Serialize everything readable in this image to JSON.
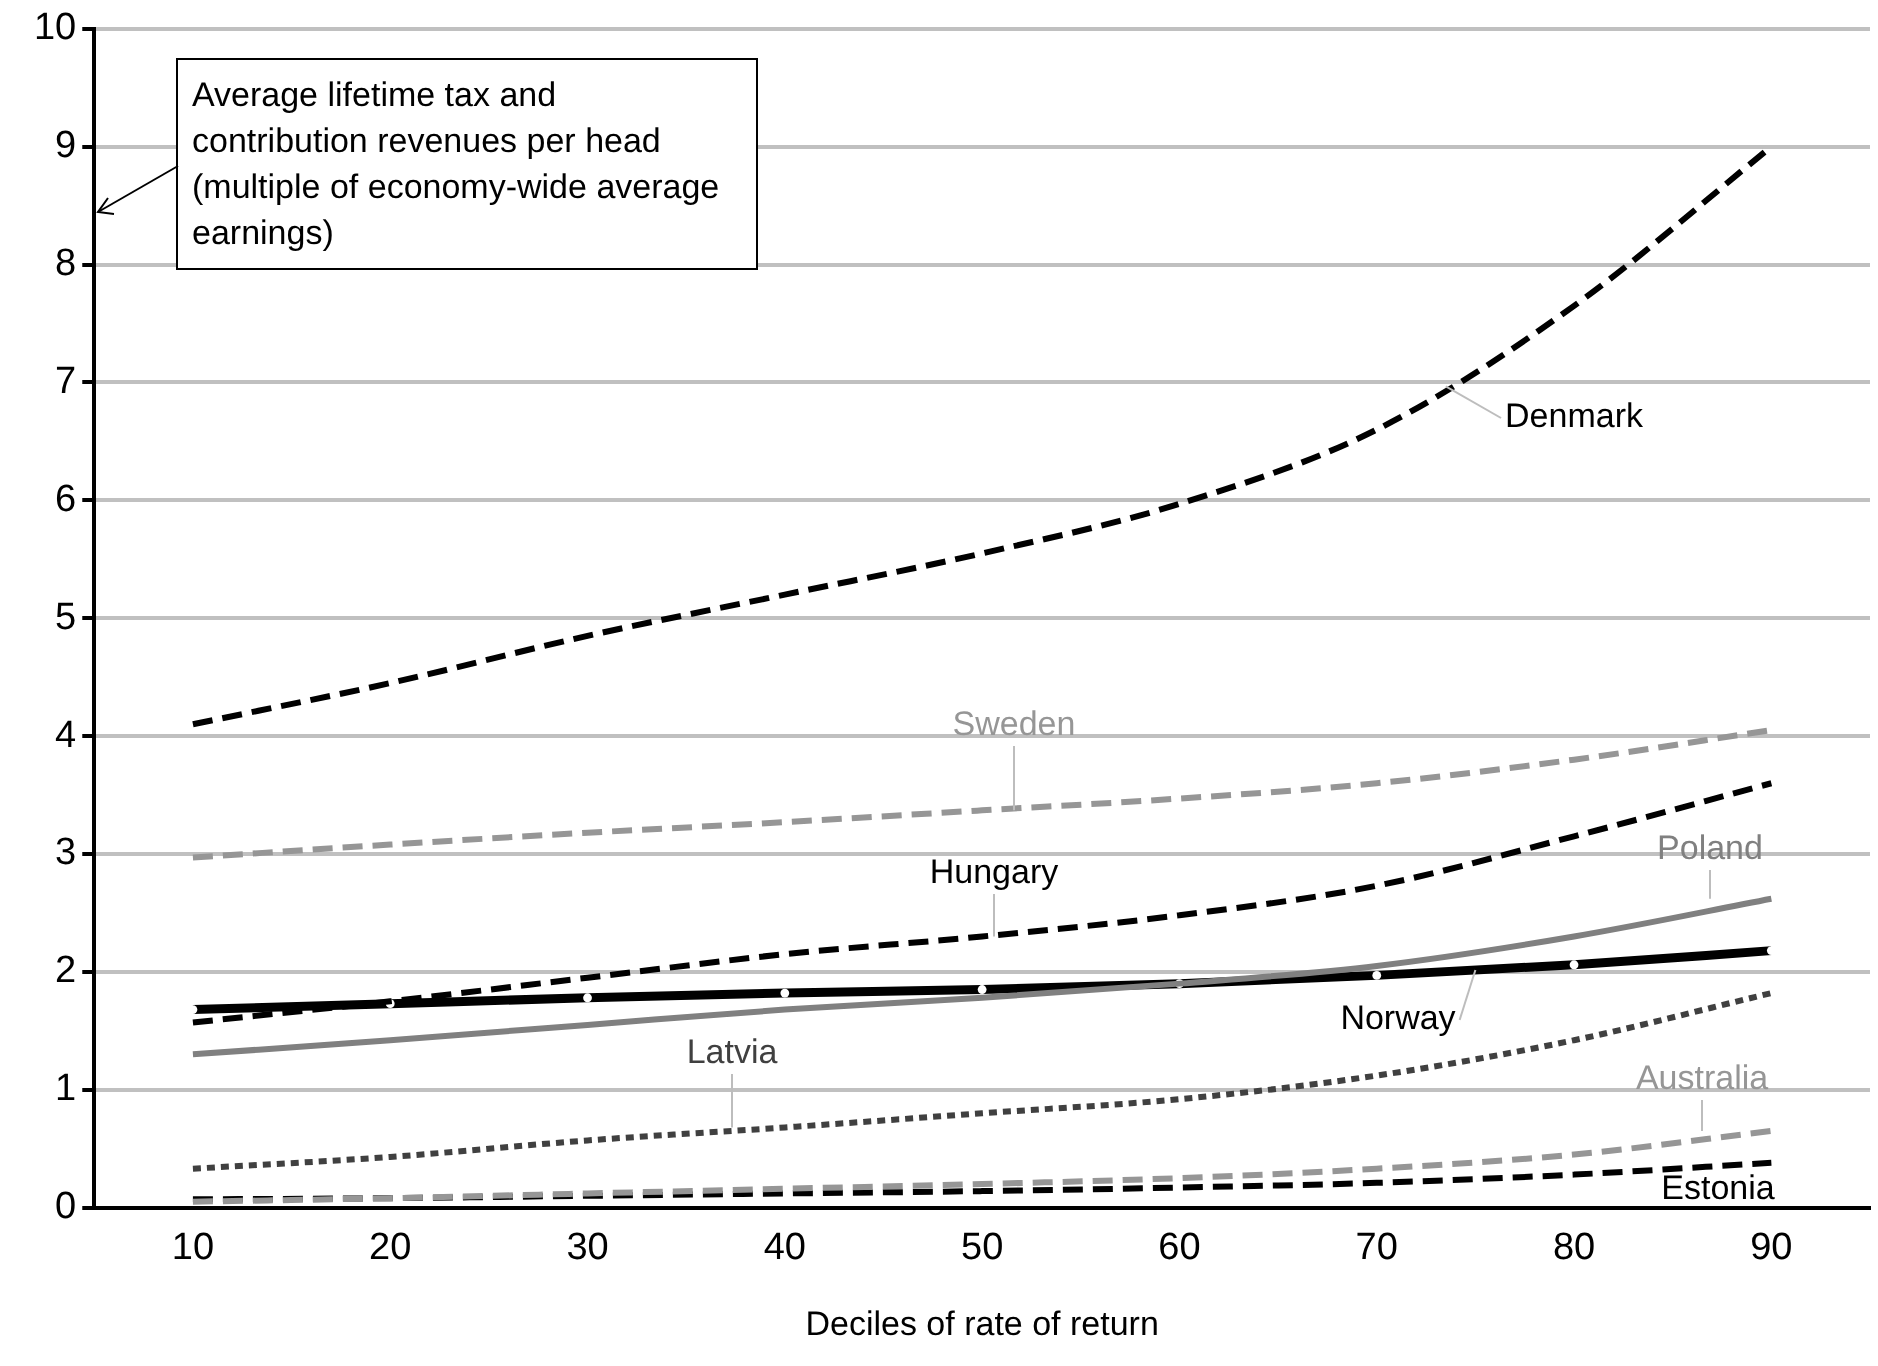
{
  "chart_data": {
    "type": "line",
    "ylabel": "Average lifetime tax and contribution revenues per head (multiple of economy-wide average earnings)",
    "xlabel": "Deciles of rate of return",
    "categories": [
      "10",
      "20",
      "30",
      "40",
      "50",
      "60",
      "70",
      "80",
      "90"
    ],
    "series": [
      {
        "name": "Denmark",
        "color": "#000000",
        "line_style": "dashed",
        "values": [
          4.1,
          4.45,
          4.85,
          5.2,
          5.55,
          5.97,
          6.6,
          7.65,
          9.0
        ]
      },
      {
        "name": "Sweden",
        "color": "#969696",
        "line_style": "dashed",
        "values": [
          2.97,
          3.08,
          3.18,
          3.27,
          3.37,
          3.47,
          3.6,
          3.8,
          4.05
        ]
      },
      {
        "name": "Hungary",
        "color": "#000000",
        "line_style": "dashed",
        "values": [
          1.57,
          1.75,
          1.95,
          2.15,
          2.3,
          2.48,
          2.73,
          3.15,
          3.6
        ]
      },
      {
        "name": "Poland",
        "color": "#808080",
        "line_style": "solid",
        "values": [
          1.3,
          1.42,
          1.55,
          1.68,
          1.78,
          1.9,
          2.05,
          2.3,
          2.62
        ]
      },
      {
        "name": "Norway",
        "color": "#000000",
        "line_style": "solid",
        "marker": "circle",
        "values": [
          1.68,
          1.73,
          1.78,
          1.82,
          1.85,
          1.9,
          1.97,
          2.06,
          2.18
        ]
      },
      {
        "name": "Latvia",
        "color": "#404040",
        "line_style": "dotted",
        "values": [
          0.33,
          0.43,
          0.57,
          0.68,
          0.8,
          0.92,
          1.12,
          1.42,
          1.82
        ]
      },
      {
        "name": "Australia",
        "color": "#969696",
        "line_style": "dashed",
        "values": [
          0.05,
          0.08,
          0.12,
          0.16,
          0.2,
          0.25,
          0.33,
          0.45,
          0.65
        ]
      },
      {
        "name": "Estonia",
        "color": "#000000",
        "line_style": "dashed",
        "values": [
          0.07,
          0.08,
          0.1,
          0.12,
          0.14,
          0.17,
          0.21,
          0.28,
          0.38
        ]
      }
    ],
    "ylim": [
      0,
      10
    ],
    "yticks": [
      0,
      1,
      2,
      3,
      4,
      5,
      6,
      7,
      8,
      9,
      10
    ],
    "grid": "y",
    "legend": false
  }
}
